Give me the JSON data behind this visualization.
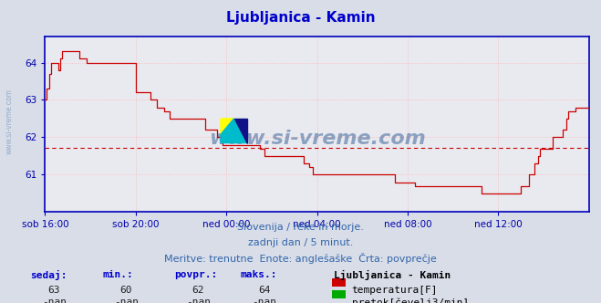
{
  "title": "Ljubljanica - Kamin",
  "title_color": "#0000cc",
  "bg_color": "#d8dde8",
  "plot_bg_color": "#e8eaf0",
  "grid_color": "#ffaaaa",
  "axis_color": "#0000bb",
  "tick_color": "#0000aa",
  "line_color": "#cc0000",
  "avg_line": 61.72,
  "avg_line_color": "#cc0000",
  "x_labels": [
    "sob 16:00",
    "sob 20:00",
    "ned 00:00",
    "ned 04:00",
    "ned 08:00",
    "ned 12:00"
  ],
  "x_ticks_pos": [
    0,
    48,
    96,
    144,
    192,
    240
  ],
  "total_points": 289,
  "ylim": [
    60.0,
    64.7
  ],
  "yticks": [
    61,
    62,
    63,
    64
  ],
  "watermark": "www.si-vreme.com",
  "left_watermark": "www.si-vreme.com",
  "footer_text1": "Slovenija / reke in morje.",
  "footer_text2": "zadnji dan / 5 minut.",
  "footer_text3": "Meritve: trenutne  Enote: anglešaške  Črta: povprečje",
  "legend_title": "Ljubljanica - Kamin",
  "legend_items": [
    {
      "label": "temperatura[F]",
      "color": "#cc0000"
    },
    {
      "label": "pretok[čevelj3/min]",
      "color": "#00aa00"
    }
  ],
  "stats_headers": [
    "sedaj:",
    "min.:",
    "povpr.:",
    "maks.:"
  ],
  "stats_row1": [
    "63",
    "60",
    "62",
    "64"
  ],
  "stats_row2": [
    "-nan",
    "-nan",
    "-nan",
    "-nan"
  ],
  "temperature_data": [
    63.0,
    63.3,
    63.7,
    64.0,
    64.0,
    64.0,
    64.0,
    63.8,
    64.1,
    64.3,
    64.3,
    64.3,
    64.3,
    64.3,
    64.3,
    64.3,
    64.3,
    64.3,
    64.1,
    64.1,
    64.1,
    64.1,
    64.0,
    64.0,
    64.0,
    64.0,
    64.0,
    64.0,
    64.0,
    64.0,
    64.0,
    64.0,
    64.0,
    64.0,
    64.0,
    64.0,
    64.0,
    64.0,
    64.0,
    64.0,
    64.0,
    64.0,
    64.0,
    64.0,
    64.0,
    64.0,
    64.0,
    64.0,
    63.2,
    63.2,
    63.2,
    63.2,
    63.2,
    63.2,
    63.2,
    63.2,
    63.0,
    63.0,
    63.0,
    62.8,
    62.8,
    62.8,
    62.8,
    62.7,
    62.7,
    62.7,
    62.5,
    62.5,
    62.5,
    62.5,
    62.5,
    62.5,
    62.5,
    62.5,
    62.5,
    62.5,
    62.5,
    62.5,
    62.5,
    62.5,
    62.5,
    62.5,
    62.5,
    62.5,
    62.5,
    62.2,
    62.2,
    62.2,
    62.2,
    62.2,
    62.2,
    62.0,
    62.0,
    62.0,
    61.8,
    61.8,
    61.8,
    61.8,
    61.8,
    61.8,
    61.8,
    61.8,
    61.8,
    61.8,
    61.8,
    61.8,
    61.8,
    61.8,
    61.8,
    61.8,
    61.8,
    61.8,
    61.8,
    61.8,
    61.7,
    61.7,
    61.5,
    61.5,
    61.5,
    61.5,
    61.5,
    61.5,
    61.5,
    61.5,
    61.5,
    61.5,
    61.5,
    61.5,
    61.5,
    61.5,
    61.5,
    61.5,
    61.5,
    61.5,
    61.5,
    61.5,
    61.5,
    61.3,
    61.3,
    61.3,
    61.2,
    61.2,
    61.0,
    61.0,
    61.0,
    61.0,
    61.0,
    61.0,
    61.0,
    61.0,
    61.0,
    61.0,
    61.0,
    61.0,
    61.0,
    61.0,
    61.0,
    61.0,
    61.0,
    61.0,
    61.0,
    61.0,
    61.0,
    61.0,
    61.0,
    61.0,
    61.0,
    61.0,
    61.0,
    61.0,
    61.0,
    61.0,
    61.0,
    61.0,
    61.0,
    61.0,
    61.0,
    61.0,
    61.0,
    61.0,
    61.0,
    61.0,
    61.0,
    61.0,
    61.0,
    60.8,
    60.8,
    60.8,
    60.8,
    60.8,
    60.8,
    60.8,
    60.8,
    60.8,
    60.8,
    60.8,
    60.7,
    60.7,
    60.7,
    60.7,
    60.7,
    60.7,
    60.7,
    60.7,
    60.7,
    60.7,
    60.7,
    60.7,
    60.7,
    60.7,
    60.7,
    60.7,
    60.7,
    60.7,
    60.7,
    60.7,
    60.7,
    60.7,
    60.7,
    60.7,
    60.7,
    60.7,
    60.7,
    60.7,
    60.7,
    60.7,
    60.7,
    60.7,
    60.7,
    60.7,
    60.7,
    60.5,
    60.5,
    60.5,
    60.5,
    60.5,
    60.5,
    60.5,
    60.5,
    60.5,
    60.5,
    60.5,
    60.5,
    60.5,
    60.5,
    60.5,
    60.5,
    60.5,
    60.5,
    60.5,
    60.5,
    60.5,
    60.7,
    60.7,
    60.7,
    60.7,
    61.0,
    61.0,
    61.0,
    61.3,
    61.3,
    61.5,
    61.7,
    61.7,
    61.7,
    61.7,
    61.7,
    61.7,
    61.7,
    62.0,
    62.0,
    62.0,
    62.0,
    62.0,
    62.2,
    62.2,
    62.5,
    62.7,
    62.7,
    62.7,
    62.7,
    62.8,
    62.8,
    62.8,
    62.8
  ]
}
